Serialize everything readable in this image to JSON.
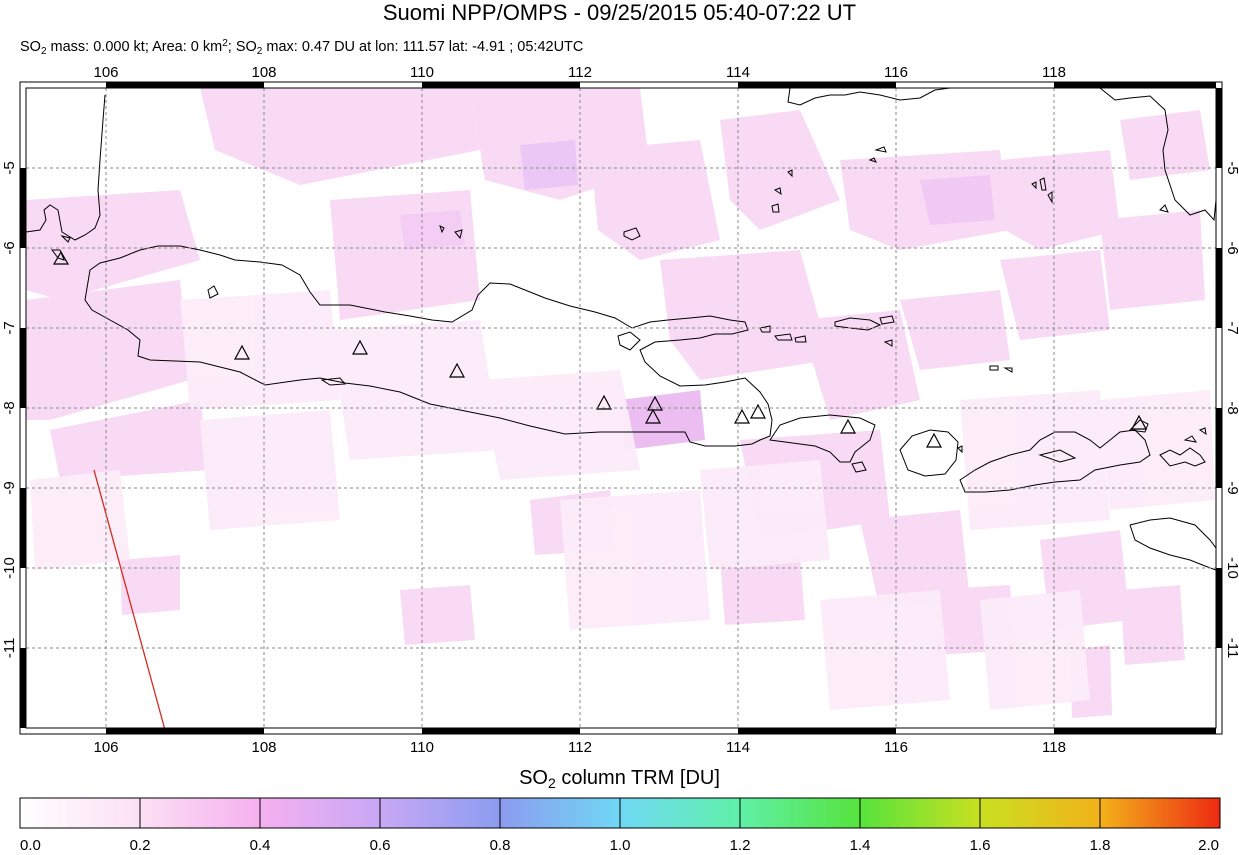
{
  "header": {
    "title": "Suomi NPP/OMPS - 09/25/2015 05:40-07:22 UT",
    "sub_so2": "SO",
    "sub_2": "2",
    "sub_mass": " mass: 0.000 kt; Area: 0 km",
    "sub_sq": "2",
    "sub_sep": "; SO",
    "sub_2b": "2",
    "sub_rest": " max: 0.47 DU at lon: 111.57 lat: -4.91 ; 05:42UTC"
  },
  "map": {
    "lon_ticks": [
      "106",
      "108",
      "110",
      "112",
      "114",
      "116",
      "118"
    ],
    "lat_ticks": [
      "-5",
      "-6",
      "-7",
      "-8",
      "-9",
      "-10",
      "-11"
    ],
    "lon_range": [
      105,
      120.2
    ],
    "lat_range": [
      -12.1,
      -4.0
    ]
  },
  "colorbar": {
    "title_pre": "SO",
    "title_sub": "2",
    "title_post": " column TRM [DU]",
    "ticks": [
      "0.0",
      "0.2",
      "0.4",
      "0.6",
      "0.8",
      "1.0",
      "1.2",
      "1.4",
      "1.6",
      "1.8",
      "2.0"
    ],
    "range": [
      0.0,
      2.0
    ],
    "colors": [
      "#ffffff",
      "#fbe0f4",
      "#f5b0ef",
      "#c8a8f5",
      "#8c9cf0",
      "#6fd8f4",
      "#5ff0a8",
      "#56e33c",
      "#c9e020",
      "#f2b21a",
      "#ee2a12"
    ]
  }
}
